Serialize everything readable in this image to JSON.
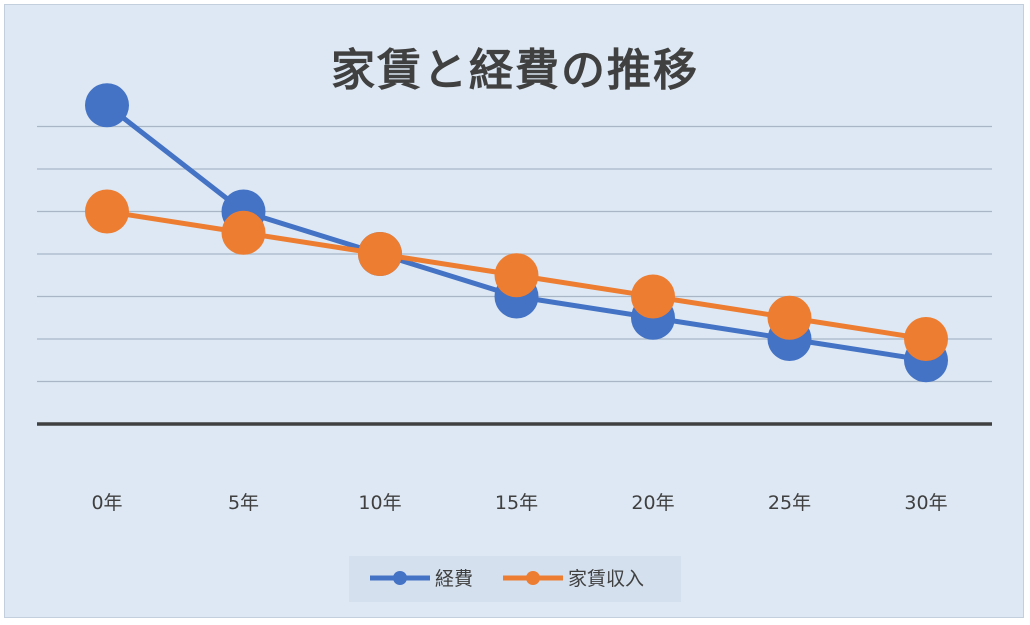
{
  "chart_data": {
    "type": "line",
    "title": "家賃と経費の推移",
    "categories": [
      "0年",
      "5年",
      "10年",
      "15年",
      "20年",
      "25年",
      "30年"
    ],
    "series": [
      {
        "name": "経費",
        "color": "#4472c4",
        "values": [
          7.5,
          5.0,
          4.0,
          3.0,
          2.5,
          2.0,
          1.5
        ]
      },
      {
        "name": "家賃収入",
        "color": "#ed7d31",
        "values": [
          5.0,
          4.5,
          4.0,
          3.5,
          3.0,
          2.5,
          2.0
        ]
      }
    ],
    "xlabel": "",
    "ylabel": "",
    "ylim": [
      -1,
      8
    ],
    "y_gridlines": [
      0,
      1,
      2,
      3,
      4,
      5,
      6,
      7
    ],
    "y_tick_labels_shown": false,
    "grid": true,
    "legend_position": "bottom"
  }
}
